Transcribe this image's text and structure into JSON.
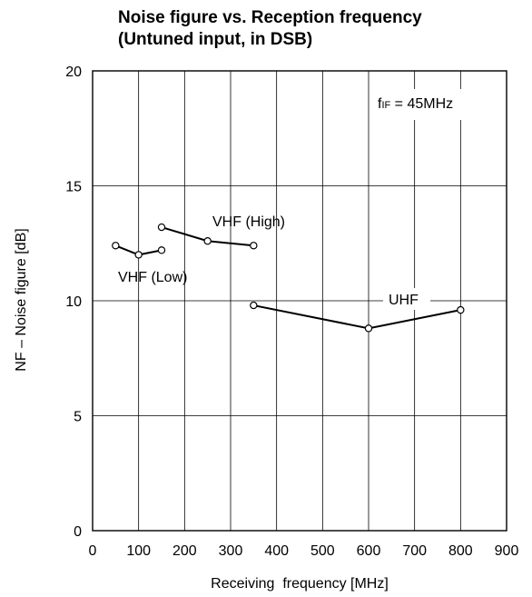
{
  "chart_data": {
    "type": "line",
    "title": "Noise figure vs. Reception frequency",
    "subtitle": "(Untuned input, in DSB)",
    "xlabel": "Receiving  frequency [MHz]",
    "ylabel": "NF – Noise figure [dB]",
    "xlim": [
      0,
      900
    ],
    "ylim": [
      0,
      20
    ],
    "xticks": [
      0,
      100,
      200,
      300,
      400,
      500,
      600,
      700,
      800,
      900
    ],
    "yticks": [
      0,
      5,
      10,
      15,
      20
    ],
    "grid": true,
    "annotation": {
      "main": "f",
      "sub": "IF",
      "rest": " = 45MHz"
    },
    "series": [
      {
        "name": "VHF (Low)",
        "x": [
          50,
          100,
          150
        ],
        "y": [
          12.4,
          12.0,
          12.2
        ]
      },
      {
        "name": "VHF (High)",
        "x": [
          150,
          250,
          350
        ],
        "y": [
          13.2,
          12.6,
          12.4
        ]
      },
      {
        "name": "UHF",
        "x": [
          350,
          600,
          800
        ],
        "y": [
          9.8,
          8.8,
          9.6
        ]
      }
    ]
  }
}
